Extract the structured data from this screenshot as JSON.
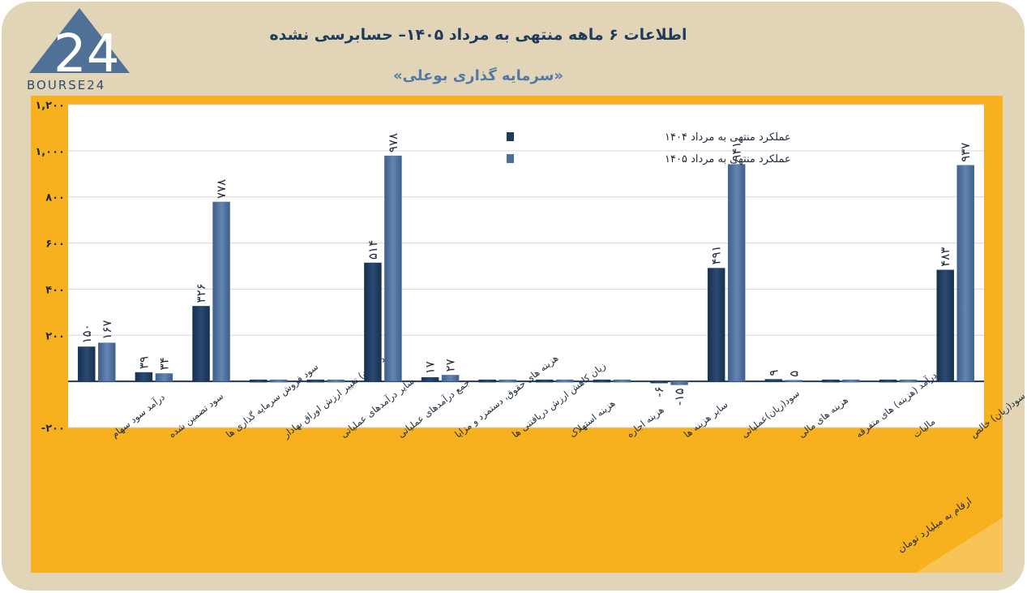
{
  "brand": {
    "logo_text": "BOURSE24",
    "logo_mark": "24"
  },
  "header": {
    "title": "اطلاعات ۶ ماهه منتهی به مرداد ۱۴۰۵– حسابرسی نشده",
    "subtitle": "«سرمایه گذاری بوعلی»"
  },
  "footer": {
    "unit_note": "ارقام به میلیارد تومان"
  },
  "colors": {
    "series_1404": "#1f3a5f",
    "series_1405": "#4f6f9a",
    "panel": "#e2d5b7",
    "orange": "#f7b11f"
  },
  "chart_data": {
    "type": "bar",
    "title": "اطلاعات ۶ ماهه منتهی به مرداد ۱۴۰۵– حسابرسی نشده",
    "subtitle": "«سرمایه گذاری بوعلی»",
    "ylabel": "ارقام به میلیارد تومان",
    "ylim": [
      -200,
      1200
    ],
    "yticks": [
      -200,
      0,
      200,
      400,
      600,
      800,
      1000,
      1200
    ],
    "ytick_labels": [
      "-۲۰۰",
      "",
      "۲۰۰",
      "۴۰۰",
      "۶۰۰",
      "۸۰۰",
      "۱,۰۰۰",
      "۱,۲۰۰"
    ],
    "grid": true,
    "legend_position": "top-center",
    "categories": [
      "درآمد سود سهام",
      "سود تضمین شده",
      "سود فروش سرمایه گذاری ها",
      "سود (زیان) تغییر ارزش اوراق بهادار",
      "سایر درآمدهای عملیاتی",
      "جمع درآمدهای عملیاتی",
      "هزینه های حقوق، دستمزد و مزایا",
      "زیان کاهش ارزش دریافتنی ها",
      "هزینه استهلاک",
      "هزینه اجاره",
      "سایر هزینه ها",
      "سود(زیان)عملیاتی",
      "هزینه های مالی",
      "درآمد (هزینه) های متفرقه",
      "مالیات",
      "سود(زیان) خالص"
    ],
    "series": [
      {
        "name": "عملکرد منتهی به مرداد ۱۴۰۴",
        "values": [
          150,
          39,
          326,
          0,
          0,
          514,
          17,
          0,
          0,
          0,
          -6,
          491,
          9,
          0,
          0,
          483
        ],
        "labels": [
          "۱۵۰",
          "۳۹",
          "۳۲۶",
          "",
          "",
          "۵۱۴",
          "۱۷",
          "",
          "",
          "",
          "-۶",
          "۴۹۱",
          "۹",
          "",
          "",
          "۴۸۳"
        ]
      },
      {
        "name": "عملکرد منتهی به مرداد ۱۴۰۵",
        "values": [
          167,
          34,
          778,
          0,
          0,
          978,
          27,
          0,
          0,
          0,
          -15,
          941,
          5,
          0,
          0,
          937
        ],
        "labels": [
          "۱۶۷",
          "۳۴",
          "۷۷۸",
          "",
          "",
          "۹۷۸",
          "۲۷",
          "",
          "",
          "",
          "-۱۵",
          "۹۴۱",
          "۵",
          "",
          "",
          "۹۳۷"
        ]
      }
    ]
  }
}
